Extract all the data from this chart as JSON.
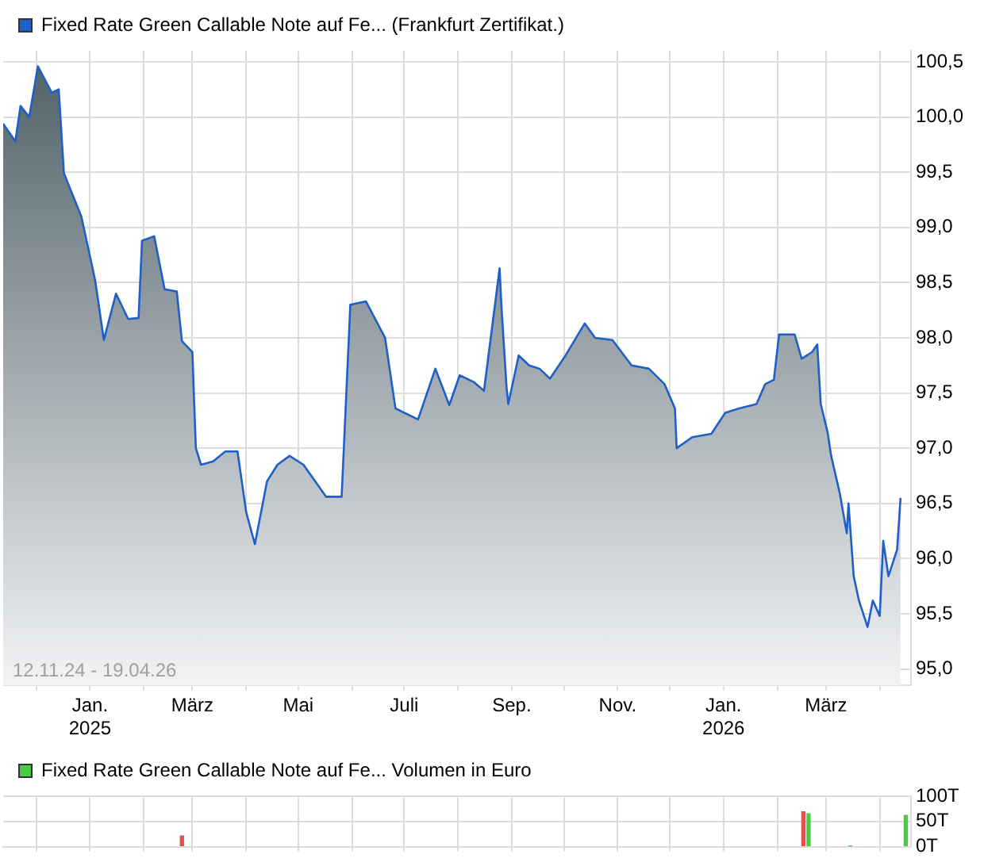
{
  "chart_data": [
    {
      "type": "area",
      "legend": "top left",
      "grid": true,
      "xlim": [
        "2024-11-12",
        "2026-04-19"
      ],
      "xticks": [
        {
          "value": "2024-12-01",
          "label": null
        },
        {
          "value": "2025-01-01",
          "label": "Jan.\n2025"
        },
        {
          "value": "2025-02-01",
          "label": null
        },
        {
          "value": "2025-03-01",
          "label": "März"
        },
        {
          "value": "2025-04-01",
          "label": null
        },
        {
          "value": "2025-05-01",
          "label": "Mai"
        },
        {
          "value": "2025-06-01",
          "label": null
        },
        {
          "value": "2025-07-01",
          "label": "Juli"
        },
        {
          "value": "2025-08-01",
          "label": null
        },
        {
          "value": "2025-09-01",
          "label": "Sep."
        },
        {
          "value": "2025-10-01",
          "label": null
        },
        {
          "value": "2025-11-01",
          "label": "Nov."
        },
        {
          "value": "2025-12-01",
          "label": null
        },
        {
          "value": "2026-01-01",
          "label": "Jan.\n2026"
        },
        {
          "value": "2026-02-01",
          "label": null
        },
        {
          "value": "2026-03-01",
          "label": "März"
        },
        {
          "value": "2026-04-01",
          "label": null
        }
      ],
      "ylim": [
        94.85,
        100.6
      ],
      "yticks": [
        {
          "value": 95,
          "label": "95,0"
        },
        {
          "value": 95.5,
          "label": "95,5"
        },
        {
          "value": 96,
          "label": "96,0"
        },
        {
          "value": 96.5,
          "label": "96,5"
        },
        {
          "value": 97,
          "label": "97,0"
        },
        {
          "value": 97.5,
          "label": "97,5"
        },
        {
          "value": 98,
          "label": "98,0"
        },
        {
          "value": 98.5,
          "label": "98,5"
        },
        {
          "value": 99,
          "label": "99,0"
        },
        {
          "value": 99.5,
          "label": "99,5"
        },
        {
          "value": 100,
          "label": "100,0"
        },
        {
          "value": 100.5,
          "label": "100,5"
        }
      ],
      "annotations": [
        "12.11.24 - 19.04.26"
      ],
      "series": [
        {
          "name": "Fixed Rate Green Callable Note auf Fe... (Frankfurt Zertifikat.)",
          "color": "#1f5fc8",
          "x": [
            "2024-11-12",
            "2024-11-19",
            "2024-11-22",
            "2024-11-27",
            "2024-12-02",
            "2024-12-10",
            "2024-12-14",
            "2024-12-17",
            "2024-12-27",
            "2025-01-04",
            "2025-01-09",
            "2025-01-16",
            "2025-01-23",
            "2025-01-29",
            "2025-01-31",
            "2025-02-07",
            "2025-02-13",
            "2025-02-20",
            "2025-02-23",
            "2025-03-01",
            "2025-03-03",
            "2025-03-06",
            "2025-03-13",
            "2025-03-20",
            "2025-03-27",
            "2025-04-01",
            "2025-04-06",
            "2025-04-13",
            "2025-04-19",
            "2025-04-26",
            "2025-05-04",
            "2025-05-17",
            "2025-05-26",
            "2025-05-31",
            "2025-06-09",
            "2025-06-20",
            "2025-06-26",
            "2025-07-09",
            "2025-07-19",
            "2025-07-27",
            "2025-08-02",
            "2025-08-10",
            "2025-08-16",
            "2025-08-25",
            "2025-08-26",
            "2025-08-29",
            "2025-08-30",
            "2025-09-05",
            "2025-09-11",
            "2025-09-17",
            "2025-09-23",
            "2025-10-02",
            "2025-10-13",
            "2025-10-19",
            "2025-10-29",
            "2025-11-09",
            "2025-11-19",
            "2025-11-28",
            "2025-12-04",
            "2025-12-05",
            "2025-12-14",
            "2025-12-25",
            "2026-01-02",
            "2026-01-10",
            "2026-01-20",
            "2026-01-25",
            "2026-01-30",
            "2026-02-02",
            "2026-02-11",
            "2026-02-15",
            "2026-02-21",
            "2026-02-24",
            "2026-02-26",
            "2026-03-02",
            "2026-03-04",
            "2026-03-09",
            "2026-03-13",
            "2026-03-14",
            "2026-03-17",
            "2026-03-20",
            "2026-03-25",
            "2026-03-28",
            "2026-04-01",
            "2026-04-03",
            "2026-04-06",
            "2026-04-11",
            "2026-04-13"
          ],
          "values": [
            99.94,
            99.78,
            100.1,
            100.0,
            100.46,
            100.22,
            100.25,
            99.49,
            99.1,
            98.52,
            97.98,
            98.4,
            98.17,
            98.18,
            98.88,
            98.92,
            98.44,
            98.42,
            97.97,
            97.87,
            97.0,
            96.85,
            96.88,
            96.97,
            96.97,
            96.42,
            96.13,
            96.7,
            96.85,
            96.93,
            96.85,
            96.56,
            96.56,
            98.3,
            98.33,
            98.0,
            97.36,
            97.26,
            97.72,
            97.39,
            97.66,
            97.6,
            97.52,
            98.63,
            98.3,
            97.55,
            97.4,
            97.84,
            97.75,
            97.72,
            97.63,
            97.84,
            98.13,
            98.0,
            97.98,
            97.75,
            97.72,
            97.58,
            97.36,
            97.0,
            97.1,
            97.13,
            97.32,
            97.36,
            97.4,
            97.58,
            97.62,
            98.03,
            98.03,
            97.81,
            97.87,
            97.94,
            97.4,
            97.14,
            96.93,
            96.59,
            96.23,
            96.5,
            95.84,
            95.62,
            95.38,
            95.62,
            95.48,
            96.16,
            95.84,
            96.08,
            96.55
          ]
        }
      ]
    },
    {
      "type": "bar",
      "legend": "top left",
      "grid": true,
      "tick_labels": "y",
      "xlim": [
        "2024-11-12",
        "2026-04-19"
      ],
      "xticks": [
        {
          "value": "2024-12-01",
          "label": null
        },
        {
          "value": "2025-01-01",
          "label": null
        },
        {
          "value": "2025-02-01",
          "label": null
        },
        {
          "value": "2025-03-01",
          "label": null
        },
        {
          "value": "2025-04-01",
          "label": null
        },
        {
          "value": "2025-05-01",
          "label": null
        },
        {
          "value": "2025-06-01",
          "label": null
        },
        {
          "value": "2025-07-01",
          "label": null
        },
        {
          "value": "2025-08-01",
          "label": null
        },
        {
          "value": "2025-09-01",
          "label": null
        },
        {
          "value": "2025-10-01",
          "label": null
        },
        {
          "value": "2025-11-01",
          "label": null
        },
        {
          "value": "2025-12-01",
          "label": null
        },
        {
          "value": "2026-01-01",
          "label": null
        },
        {
          "value": "2026-02-01",
          "label": null
        },
        {
          "value": "2026-03-01",
          "label": null
        },
        {
          "value": "2026-04-01",
          "label": null
        }
      ],
      "ylim": [
        0,
        100
      ],
      "yticks": [
        {
          "value": 0,
          "label": "0T"
        },
        {
          "value": 50,
          "label": "50T"
        },
        {
          "value": 100,
          "label": "100T"
        }
      ],
      "series": [
        {
          "name": "Fixed Rate Green Callable Note auf Fe... Volumen in Euro",
          "color": "#44cc44",
          "x": [
            "2025-02-23",
            "2026-02-16",
            "2026-02-19",
            "2026-03-15",
            "2026-04-16"
          ],
          "values": [
            21,
            69,
            65,
            1,
            62
          ],
          "colors": [
            "#e05050",
            "#e05050",
            "#44cc44",
            "#44cc44",
            "#44cc44"
          ]
        }
      ]
    }
  ]
}
